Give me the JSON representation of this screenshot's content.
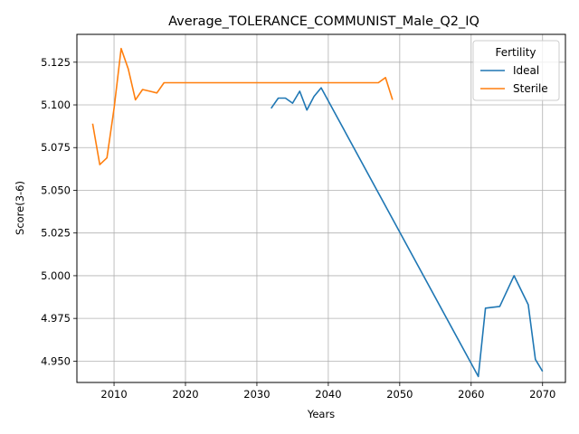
{
  "chart_data": {
    "type": "line",
    "title": "Average_TOLERANCE_COMMUNIST_Male_Q2_IQ",
    "xlabel": "Years",
    "ylabel": "Score(3-6)",
    "xlim": [
      2004.8,
      2073.2
    ],
    "ylim": [
      4.9375,
      5.1413
    ],
    "xticks": [
      2010,
      2020,
      2030,
      2040,
      2050,
      2060,
      2070
    ],
    "yticks": [
      4.95,
      4.975,
      5.0,
      5.025,
      5.05,
      5.075,
      5.1,
      5.125
    ],
    "xtick_labels": [
      "2010",
      "2020",
      "2030",
      "2040",
      "2050",
      "2060",
      "2070"
    ],
    "ytick_labels": [
      "4.950",
      "4.975",
      "5.000",
      "5.025",
      "5.050",
      "5.075",
      "5.100",
      "5.125"
    ],
    "grid": true,
    "legend": {
      "title": "Fertility",
      "placement": "top-right"
    },
    "series": [
      {
        "name": "Ideal",
        "color": "#1f77b4",
        "points": [
          [
            2032,
            5.098
          ],
          [
            2033,
            5.104
          ],
          [
            2034,
            5.104
          ],
          [
            2035,
            5.101
          ],
          [
            2036,
            5.108
          ],
          [
            2037,
            5.097
          ],
          [
            2038,
            5.105
          ],
          [
            2039,
            5.11
          ],
          [
            2061,
            4.941
          ],
          [
            2062,
            4.981
          ],
          [
            2064,
            4.982
          ],
          [
            2066,
            5.0
          ],
          [
            2068,
            4.983
          ],
          [
            2069,
            4.951
          ],
          [
            2070,
            4.944
          ]
        ]
      },
      {
        "name": "Sterile",
        "color": "#ff7f0e",
        "points": [
          [
            2007,
            5.089
          ],
          [
            2008,
            5.065
          ],
          [
            2009,
            5.069
          ],
          [
            2010,
            5.098
          ],
          [
            2011,
            5.133
          ],
          [
            2012,
            5.121
          ],
          [
            2013,
            5.103
          ],
          [
            2014,
            5.109
          ],
          [
            2015,
            5.108
          ],
          [
            2016,
            5.107
          ],
          [
            2017,
            5.113
          ],
          [
            2047,
            5.113
          ],
          [
            2048,
            5.116
          ],
          [
            2049,
            5.103
          ]
        ]
      }
    ]
  }
}
